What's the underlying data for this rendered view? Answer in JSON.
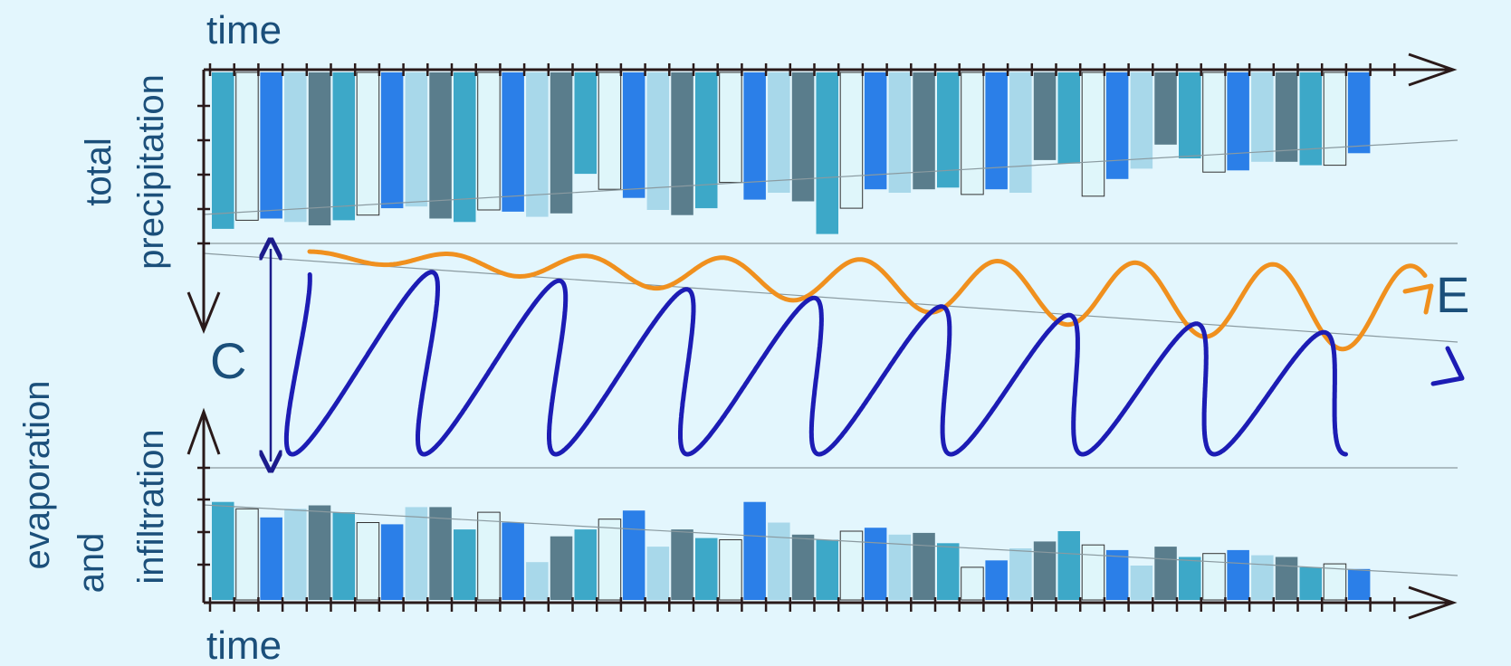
{
  "labels": {
    "top_time": "time",
    "bottom_time": "time",
    "top_axis_line1": "total",
    "top_axis_line2": "precipitation",
    "bottom_axis_line1": "evaporation",
    "bottom_axis_line2": "and",
    "bottom_axis_line3": "infiltration",
    "c_label": "C",
    "e_label": "E"
  },
  "colors": {
    "background": "#e3f6fd",
    "axis": "#2a1a1a",
    "text": "#1b4f7a",
    "loop": "#1c1cb4",
    "wave": "#f0901e",
    "c_arrow": "#1c1c8c",
    "trend": "#8a9aa0",
    "bar_palette": [
      "#3da8c8",
      "#dff6fa",
      "#2b7fe8",
      "#a8d8ea",
      "#5a7d8c"
    ]
  },
  "bar_pattern": [
    0,
    1,
    2,
    3,
    4,
    0,
    1,
    2,
    3,
    4,
    0,
    1,
    2,
    3,
    4,
    0,
    1,
    2,
    3,
    4,
    0,
    1,
    2,
    3,
    4,
    0,
    1,
    2,
    3,
    4,
    0,
    1,
    2,
    3,
    4,
    0,
    1,
    2,
    3,
    4,
    0,
    1,
    2,
    3,
    4,
    0,
    1,
    2
  ],
  "precipitation_bars": [
    0.91,
    0.86,
    0.85,
    0.87,
    0.89,
    0.86,
    0.83,
    0.79,
    0.78,
    0.85,
    0.87,
    0.8,
    0.81,
    0.84,
    0.82,
    0.59,
    0.68,
    0.73,
    0.8,
    0.83,
    0.79,
    0.64,
    0.74,
    0.7,
    0.75,
    0.94,
    0.79,
    0.68,
    0.7,
    0.68,
    0.67,
    0.71,
    0.68,
    0.7,
    0.51,
    0.53,
    0.72,
    0.62,
    0.56,
    0.42,
    0.5,
    0.58,
    0.57,
    0.52,
    0.52,
    0.54,
    0.54,
    0.47
  ],
  "evaporation_bars": [
    0.57,
    0.53,
    0.48,
    0.53,
    0.55,
    0.51,
    0.45,
    0.44,
    0.54,
    0.54,
    0.41,
    0.51,
    0.45,
    0.22,
    0.37,
    0.41,
    0.47,
    0.52,
    0.31,
    0.41,
    0.36,
    0.35,
    0.57,
    0.45,
    0.38,
    0.35,
    0.4,
    0.42,
    0.38,
    0.39,
    0.33,
    0.19,
    0.23,
    0.3,
    0.34,
    0.4,
    0.32,
    0.29,
    0.2,
    0.31,
    0.25,
    0.27,
    0.29,
    0.26,
    0.25,
    0.19,
    0.21,
    0.18
  ]
}
